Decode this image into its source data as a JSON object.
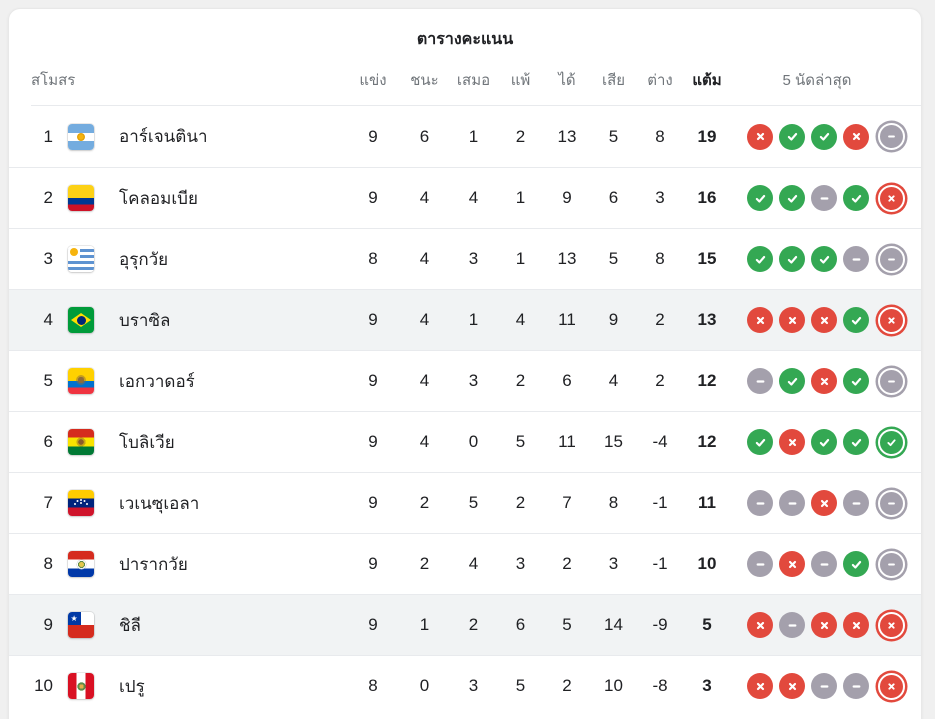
{
  "title": "ตารางคะแนน",
  "table": {
    "headers": {
      "club": "สโมสร",
      "played": "แข่ง",
      "won": "ชนะ",
      "drawn": "เสมอ",
      "lost": "แพ้",
      "gf": "ได้",
      "ga": "เสีย",
      "gd": "ต่าง",
      "points": "แต้ม",
      "form": "5 นัดล่าสุด"
    },
    "rows": [
      {
        "rank": "1",
        "team": "อาร์เจนตินา",
        "flag": "argentina",
        "played": "9",
        "won": "6",
        "drawn": "1",
        "lost": "2",
        "gf": "13",
        "ga": "5",
        "gd": "8",
        "points": "19",
        "form": [
          "L",
          "W",
          "W",
          "L",
          "D"
        ],
        "highlighted": false
      },
      {
        "rank": "2",
        "team": "โคลอมเบีย",
        "flag": "colombia",
        "played": "9",
        "won": "4",
        "drawn": "4",
        "lost": "1",
        "gf": "9",
        "ga": "6",
        "gd": "3",
        "points": "16",
        "form": [
          "W",
          "W",
          "D",
          "W",
          "L"
        ],
        "highlighted": false
      },
      {
        "rank": "3",
        "team": "อุรุกวัย",
        "flag": "uruguay",
        "played": "8",
        "won": "4",
        "drawn": "3",
        "lost": "1",
        "gf": "13",
        "ga": "5",
        "gd": "8",
        "points": "15",
        "form": [
          "W",
          "W",
          "W",
          "D",
          "D"
        ],
        "highlighted": false
      },
      {
        "rank": "4",
        "team": "บราซิล",
        "flag": "brazil",
        "played": "9",
        "won": "4",
        "drawn": "1",
        "lost": "4",
        "gf": "11",
        "ga": "9",
        "gd": "2",
        "points": "13",
        "form": [
          "L",
          "L",
          "L",
          "W",
          "L"
        ],
        "highlighted": true
      },
      {
        "rank": "5",
        "team": "เอกวาดอร์",
        "flag": "ecuador",
        "played": "9",
        "won": "4",
        "drawn": "3",
        "lost": "2",
        "gf": "6",
        "ga": "4",
        "gd": "2",
        "points": "12",
        "form": [
          "D",
          "W",
          "L",
          "W",
          "D"
        ],
        "highlighted": false
      },
      {
        "rank": "6",
        "team": "โบลิเวีย",
        "flag": "bolivia",
        "played": "9",
        "won": "4",
        "drawn": "0",
        "lost": "5",
        "gf": "11",
        "ga": "15",
        "gd": "-4",
        "points": "12",
        "form": [
          "W",
          "L",
          "W",
          "W",
          "W"
        ],
        "highlighted": false
      },
      {
        "rank": "7",
        "team": "เวเนซุเอลา",
        "flag": "venezuela",
        "played": "9",
        "won": "2",
        "drawn": "5",
        "lost": "2",
        "gf": "7",
        "ga": "8",
        "gd": "-1",
        "points": "11",
        "form": [
          "D",
          "D",
          "L",
          "D",
          "D"
        ],
        "highlighted": false
      },
      {
        "rank": "8",
        "team": "ปารากวัย",
        "flag": "paraguay",
        "played": "9",
        "won": "2",
        "drawn": "4",
        "lost": "3",
        "gf": "2",
        "ga": "3",
        "gd": "-1",
        "points": "10",
        "form": [
          "D",
          "L",
          "D",
          "W",
          "D"
        ],
        "highlighted": false
      },
      {
        "rank": "9",
        "team": "ชิลี",
        "flag": "chile",
        "played": "9",
        "won": "1",
        "drawn": "2",
        "lost": "6",
        "gf": "5",
        "ga": "14",
        "gd": "-9",
        "points": "5",
        "form": [
          "L",
          "D",
          "L",
          "L",
          "L"
        ],
        "highlighted": true
      },
      {
        "rank": "10",
        "team": "เปรู",
        "flag": "peru",
        "played": "8",
        "won": "0",
        "drawn": "3",
        "lost": "5",
        "gf": "2",
        "ga": "10",
        "gd": "-8",
        "points": "3",
        "form": [
          "L",
          "L",
          "D",
          "D",
          "L"
        ],
        "highlighted": false
      }
    ]
  },
  "form_legend": {
    "W": "win",
    "L": "loss",
    "D": "draw"
  },
  "colors": {
    "win": "#34A853",
    "loss": "#E2493D",
    "draw": "#A4A0AC",
    "text_dark": "#202124",
    "text_gray": "#70757A",
    "row_highlight": "#F1F3F4",
    "divider": "#E8EAED",
    "card_bg": "#FFFFFF",
    "page_bg": "#F0F0F0"
  }
}
